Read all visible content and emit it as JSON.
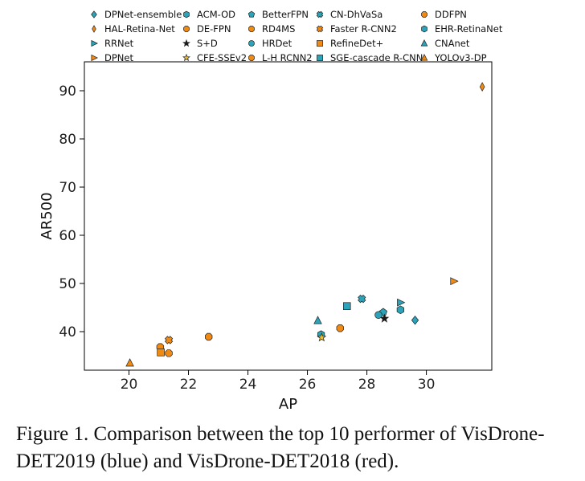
{
  "chart_data": {
    "type": "scatter",
    "title": "",
    "xlabel": "AP",
    "ylabel": "AR500",
    "xlim": [
      18.5,
      32.2
    ],
    "ylim": [
      32,
      96
    ],
    "xticks": [
      20,
      22,
      24,
      26,
      28,
      30
    ],
    "yticks": [
      40,
      50,
      60,
      70,
      80,
      90
    ],
    "grid": false,
    "legend_position": "top",
    "series": [
      {
        "name": "DPNet-ensemble",
        "group": "VisDrone-DET2019",
        "marker": "diamond",
        "color": "#2ba3b8",
        "x": 29.62,
        "y": 42.37
      },
      {
        "name": "ACM-OD",
        "group": "VisDrone-DET2019",
        "marker": "hexagon",
        "color": "#2ba3b8",
        "x": 29.13,
        "y": 44.53
      },
      {
        "name": "BetterFPN",
        "group": "VisDrone-DET2019",
        "marker": "pentagon",
        "color": "#2ba3b8",
        "x": 28.55,
        "y": 44.02
      },
      {
        "name": "CN-DhVaSa",
        "group": "VisDrone-DET2019",
        "marker": "x-filled",
        "color": "#2ba3b8",
        "x": 27.83,
        "y": 46.81
      },
      {
        "name": "DDFPN",
        "group": "VisDrone-DET2018",
        "marker": "octagon",
        "color": "#f08a12",
        "x": 21.05,
        "y": 36.8
      },
      {
        "name": "HAL-Retina-Net",
        "group": "VisDrone-DET2019",
        "marker": "thin-diamond",
        "color": "#f08a12",
        "x": 31.88,
        "y": 90.82
      },
      {
        "name": "DE-FPN",
        "group": "VisDrone-DET2018",
        "marker": "octagon",
        "color": "#f08a12",
        "x": 27.1,
        "y": 40.72
      },
      {
        "name": "RD4MS",
        "group": "VisDrone-DET2018",
        "marker": "octagon",
        "color": "#f08a12",
        "x": 22.68,
        "y": 38.93
      },
      {
        "name": "Faster R-CNN2",
        "group": "VisDrone-DET2018",
        "marker": "x-filled",
        "color": "#f08a12",
        "x": 21.34,
        "y": 38.26
      },
      {
        "name": "EHR-RetinaNet",
        "group": "VisDrone-DET2019",
        "marker": "hexagon",
        "color": "#2ba3b8",
        "x": 26.46,
        "y": 39.38
      },
      {
        "name": "RRNet",
        "group": "VisDrone-DET2019",
        "marker": "triangle-right",
        "color": "#2ba3b8",
        "x": 29.13,
        "y": 46.05
      },
      {
        "name": "S+D",
        "group": "VisDrone-DET2019",
        "marker": "star",
        "color": "#1a1a1a",
        "x": 28.59,
        "y": 42.72
      },
      {
        "name": "HRDet",
        "group": "VisDrone-DET2019",
        "marker": "circle",
        "color": "#2ba3b8",
        "x": 28.39,
        "y": 43.45
      },
      {
        "name": "RefineDet+",
        "group": "VisDrone-DET2018",
        "marker": "square",
        "color": "#f08a12",
        "x": 21.07,
        "y": 35.7
      },
      {
        "name": "CNAnet",
        "group": "VisDrone-DET2019",
        "marker": "triangle-up",
        "color": "#2ba3b8",
        "x": 26.35,
        "y": 42.3
      },
      {
        "name": "DPNet",
        "group": "VisDrone-DET2018",
        "marker": "triangle-right",
        "color": "#f08a12",
        "x": 30.92,
        "y": 50.47
      },
      {
        "name": "CFE-SSEv2",
        "group": "VisDrone-DET2019",
        "marker": "star",
        "color": "#f0c020",
        "x": 26.48,
        "y": 38.79
      },
      {
        "name": "L-H RCNN2",
        "group": "VisDrone-DET2018",
        "marker": "octagon",
        "color": "#f08a12",
        "x": 21.34,
        "y": 35.52
      },
      {
        "name": "SGE-cascade R-CNN",
        "group": "VisDrone-DET2019",
        "marker": "square",
        "color": "#2ba3b8",
        "x": 27.33,
        "y": 45.3
      },
      {
        "name": "YOLOv3-DP",
        "group": "VisDrone-DET2018",
        "marker": "triangle-up",
        "color": "#f08a12",
        "x": 20.03,
        "y": 33.48
      }
    ],
    "legend_entries": [
      "DPNet-ensemble",
      "ACM-OD",
      "BetterFPN",
      "CN-DhVaSa",
      "DDFPN",
      "HAL-Retina-Net",
      "DE-FPN",
      "RD4MS",
      "Faster R-CNN2",
      "EHR-RetinaNet",
      "RRNet",
      "S+D",
      "HRDet",
      "RefineDet+",
      "CNAnet",
      "DPNet",
      "CFE-SSEv2",
      "L-H RCNN2",
      "SGE-cascade R-CNN",
      "YOLOv3-DP"
    ]
  },
  "caption": {
    "line1": "Figure 1. Comparison between the top 10 performer of VisDrone-",
    "line2": "DET2019 (blue) and VisDrone-DET2018 (red)."
  }
}
